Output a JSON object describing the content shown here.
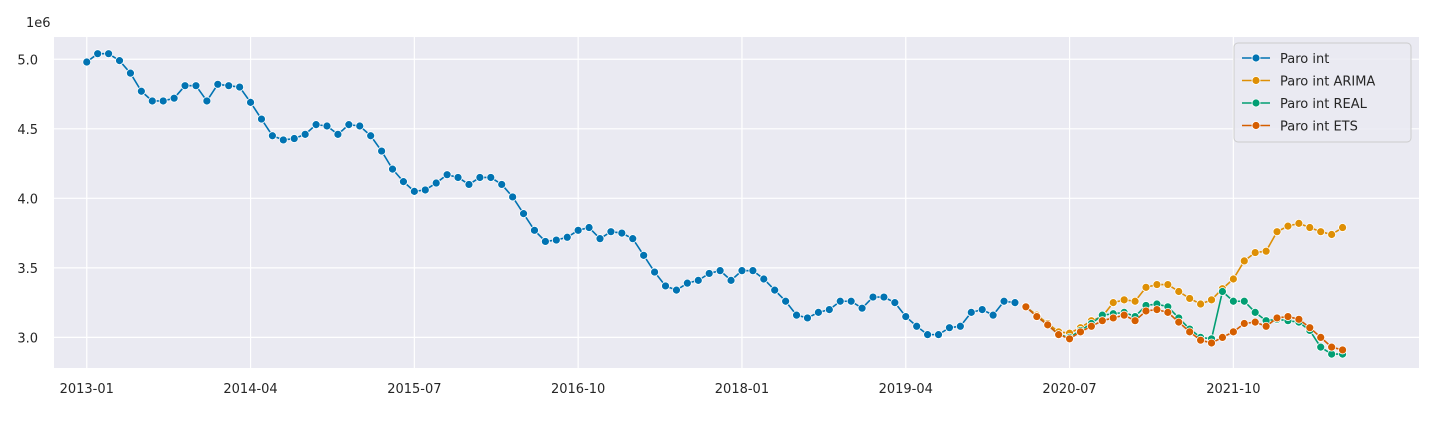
{
  "chart_data": {
    "type": "line",
    "title": "",
    "xlabel": "",
    "ylabel": "",
    "y_scale_label": "1e6",
    "y_multiplier": 1000000,
    "x_ticks": [
      "2013-01",
      "2014-04",
      "2015-07",
      "2016-10",
      "2018-01",
      "2019-04",
      "2020-07",
      "2021-10"
    ],
    "y_ticks": [
      "3.0",
      "3.5",
      "4.0",
      "4.5",
      "5.0"
    ],
    "xlim": [
      "2012-10",
      "2023-03"
    ],
    "ylim": [
      2.78,
      5.16
    ],
    "grid": true,
    "legend_position": "top-right",
    "series": [
      {
        "name": "Paro int",
        "color": "#0173b2",
        "start": "2013-01",
        "values": [
          4.98,
          5.04,
          5.04,
          4.99,
          4.9,
          4.77,
          4.7,
          4.7,
          4.72,
          4.81,
          4.81,
          4.7,
          4.82,
          4.81,
          4.8,
          4.69,
          4.57,
          4.45,
          4.42,
          4.43,
          4.46,
          4.53,
          4.52,
          4.46,
          4.53,
          4.52,
          4.45,
          4.34,
          4.21,
          4.12,
          4.05,
          4.06,
          4.11,
          4.17,
          4.15,
          4.1,
          4.15,
          4.15,
          4.1,
          4.01,
          3.89,
          3.77,
          3.69,
          3.7,
          3.72,
          3.77,
          3.79,
          3.71,
          3.76,
          3.75,
          3.71,
          3.59,
          3.47,
          3.37,
          3.34,
          3.39,
          3.41,
          3.46,
          3.48,
          3.41,
          3.48,
          3.48,
          3.42,
          3.34,
          3.26,
          3.16,
          3.14,
          3.18,
          3.2,
          3.26,
          3.26,
          3.21,
          3.29,
          3.29,
          3.25,
          3.15,
          3.08,
          3.02,
          3.02,
          3.07,
          3.08,
          3.18,
          3.2,
          3.16,
          3.26,
          3.25
        ]
      },
      {
        "name": "Paro int ARIMA",
        "color": "#de8f05",
        "start": "2020-03",
        "values": [
          3.22,
          3.16,
          3.1,
          3.04,
          3.03,
          3.07,
          3.12,
          3.15,
          3.25,
          3.27,
          3.26,
          3.36,
          3.38,
          3.38,
          3.33,
          3.28,
          3.24,
          3.27,
          3.35,
          3.42,
          3.55,
          3.61,
          3.62,
          3.76,
          3.8,
          3.82,
          3.79,
          3.76,
          3.74,
          3.79
        ]
      },
      {
        "name": "Paro int REAL",
        "color": "#029e73",
        "start": "2020-03",
        "values": [
          3.22,
          3.15,
          3.09,
          3.02,
          3.0,
          3.05,
          3.1,
          3.16,
          3.17,
          3.18,
          3.15,
          3.23,
          3.24,
          3.22,
          3.14,
          3.06,
          3.0,
          2.99,
          3.33,
          3.26,
          3.26,
          3.18,
          3.12,
          3.13,
          3.12,
          3.11,
          3.05,
          2.93,
          2.88,
          2.88
        ]
      },
      {
        "name": "Paro int ETS",
        "color": "#d55e00",
        "start": "2020-03",
        "values": [
          3.22,
          3.15,
          3.09,
          3.02,
          2.99,
          3.04,
          3.08,
          3.12,
          3.14,
          3.16,
          3.12,
          3.19,
          3.2,
          3.18,
          3.11,
          3.04,
          2.98,
          2.96,
          3.0,
          3.04,
          3.1,
          3.11,
          3.08,
          3.14,
          3.15,
          3.13,
          3.07,
          3.0,
          2.93,
          2.91
        ]
      }
    ]
  }
}
